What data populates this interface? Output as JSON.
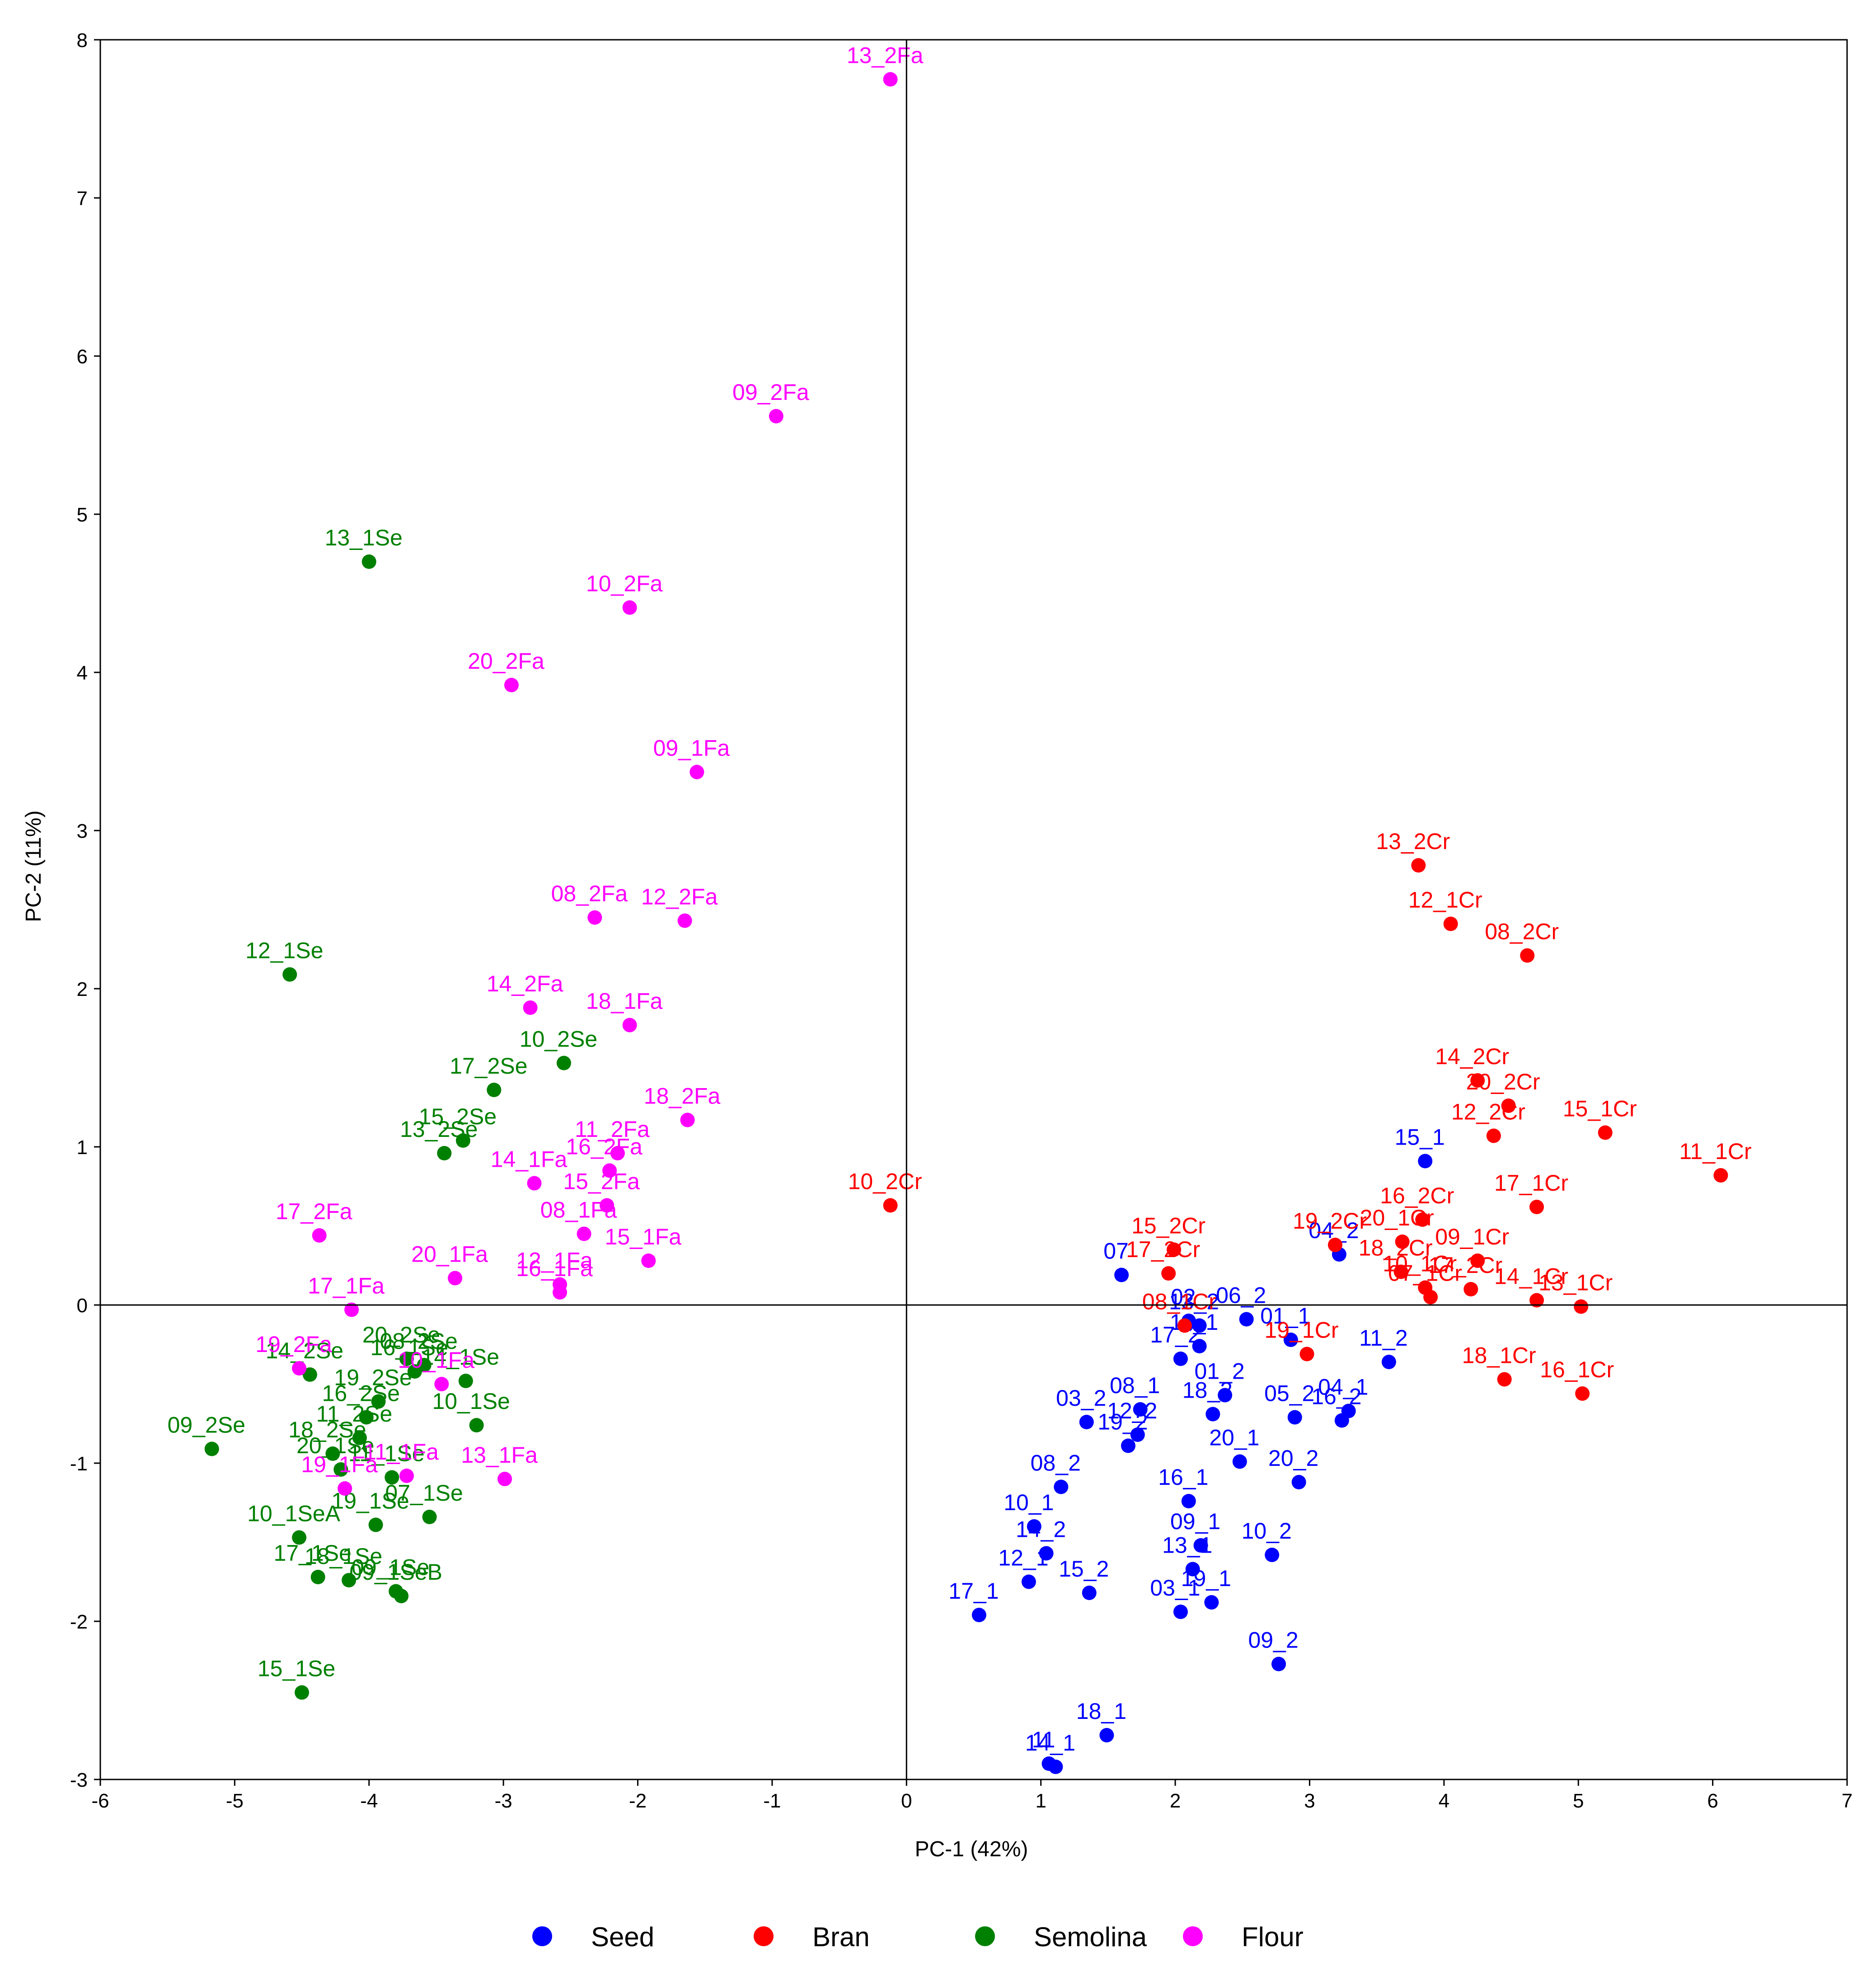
{
  "chart_data": {
    "type": "scatter",
    "title": "",
    "xlabel": "PC-1 (42%)",
    "ylabel": "PC-2 (11%)",
    "xlim": [
      -6,
      7
    ],
    "ylim": [
      -3,
      8
    ],
    "xticks": [
      -6,
      -5,
      -4,
      -3,
      -2,
      -1,
      0,
      1,
      2,
      3,
      4,
      5,
      6,
      7
    ],
    "yticks": [
      -3,
      -2,
      -1,
      0,
      1,
      2,
      3,
      4,
      5,
      6,
      7,
      8
    ],
    "grid": false,
    "zero_lines": true,
    "legend_position": "bottom",
    "series": [
      {
        "name": "Seed",
        "color": "#0000FF",
        "points": [
          {
            "label": "15_1",
            "x": 3.86,
            "y": 0.91
          },
          {
            "label": "04_2",
            "x": 3.22,
            "y": 0.32
          },
          {
            "label": "07",
            "x": 1.6,
            "y": 0.19
          },
          {
            "label": "06_2",
            "x": 2.53,
            "y": -0.09
          },
          {
            "label": "02",
            "x": 2.1,
            "y": -0.1
          },
          {
            "label": "13_2",
            "x": 2.18,
            "y": -0.13
          },
          {
            "label": "01_1",
            "x": 2.86,
            "y": -0.22
          },
          {
            "label": "11_2",
            "x": 3.59,
            "y": -0.36
          },
          {
            "label": "11_1",
            "x": 2.18,
            "y": -0.26
          },
          {
            "label": "17_2",
            "x": 2.04,
            "y": -0.34
          },
          {
            "label": "01_2",
            "x": 2.37,
            "y": -0.57
          },
          {
            "label": "04_1",
            "x": 3.29,
            "y": -0.67
          },
          {
            "label": "16_2",
            "x": 3.24,
            "y": -0.73
          },
          {
            "label": "05_2",
            "x": 2.89,
            "y": -0.71
          },
          {
            "label": "03_2",
            "x": 1.34,
            "y": -0.74
          },
          {
            "label": "08_1",
            "x": 1.74,
            "y": -0.66
          },
          {
            "label": "12_2",
            "x": 1.72,
            "y": -0.82
          },
          {
            "label": "18_2",
            "x": 2.28,
            "y": -0.69
          },
          {
            "label": "19_2",
            "x": 1.65,
            "y": -0.89
          },
          {
            "label": "20_2",
            "x": 2.92,
            "y": -1.12
          },
          {
            "label": "20_1",
            "x": 2.48,
            "y": -0.99
          },
          {
            "label": "08_2",
            "x": 1.15,
            "y": -1.15
          },
          {
            "label": "16_1",
            "x": 2.1,
            "y": -1.24
          },
          {
            "label": "10_1",
            "x": 0.95,
            "y": -1.4
          },
          {
            "label": "14_2",
            "x": 1.04,
            "y": -1.57
          },
          {
            "label": "09_1",
            "x": 2.19,
            "y": -1.52
          },
          {
            "label": "10_2",
            "x": 2.72,
            "y": -1.58
          },
          {
            "label": "13_1",
            "x": 2.13,
            "y": -1.67
          },
          {
            "label": "12_1",
            "x": 0.91,
            "y": -1.75
          },
          {
            "label": "15_2",
            "x": 1.36,
            "y": -1.82
          },
          {
            "label": "19_1",
            "x": 2.27,
            "y": -1.88
          },
          {
            "label": "17_1",
            "x": 0.54,
            "y": -1.96
          },
          {
            "label": "03_1",
            "x": 2.04,
            "y": -1.94
          },
          {
            "label": "09_2",
            "x": 2.77,
            "y": -2.27
          },
          {
            "label": "18_1",
            "x": 1.49,
            "y": -2.72
          },
          {
            "label": "14_1",
            "x": 1.11,
            "y": -2.92
          },
          {
            "label": "11",
            "x": 1.06,
            "y": -2.9
          }
        ]
      },
      {
        "name": "Bran",
        "color": "#FF0000",
        "points": [
          {
            "label": "13_2Cr",
            "x": 3.81,
            "y": 2.78
          },
          {
            "label": "12_1Cr",
            "x": 4.05,
            "y": 2.41
          },
          {
            "label": "08_2Cr",
            "x": 4.62,
            "y": 2.21
          },
          {
            "label": "14_2Cr",
            "x": 4.25,
            "y": 1.42
          },
          {
            "label": "20_2Cr",
            "x": 4.48,
            "y": 1.26
          },
          {
            "label": "12_2Cr",
            "x": 4.37,
            "y": 1.07
          },
          {
            "label": "15_1Cr",
            "x": 5.2,
            "y": 1.09
          },
          {
            "label": "11_1Cr",
            "x": 6.06,
            "y": 0.82
          },
          {
            "label": "17_1Cr",
            "x": 4.69,
            "y": 0.62
          },
          {
            "label": "16_2Cr",
            "x": 3.84,
            "y": 0.54
          },
          {
            "label": "19_2Cr",
            "x": 3.19,
            "y": 0.38
          },
          {
            "label": "20_1Cr",
            "x": 3.69,
            "y": 0.4
          },
          {
            "label": "09_1Cr",
            "x": 4.25,
            "y": 0.28
          },
          {
            "label": "18_2Cr",
            "x": 3.68,
            "y": 0.21
          },
          {
            "label": "10_1Cr",
            "x": 3.86,
            "y": 0.11
          },
          {
            "label": "07_1Cr",
            "x": 3.9,
            "y": 0.05
          },
          {
            "label": "17_2Cr",
            "x": 4.2,
            "y": 0.1
          },
          {
            "label": "14_1Cr",
            "x": 4.69,
            "y": 0.03
          },
          {
            "label": "13_1Cr",
            "x": 5.02,
            "y": -0.01
          },
          {
            "label": "15_2Cr",
            "x": 1.99,
            "y": 0.35
          },
          {
            "label": "17_2Cr",
            "x": 1.95,
            "y": 0.2
          },
          {
            "label": "08_1Cr",
            "x": 2.07,
            "y": -0.13
          },
          {
            "label": "19_1Cr",
            "x": 2.98,
            "y": -0.31
          },
          {
            "label": "18_1Cr",
            "x": 4.45,
            "y": -0.47
          },
          {
            "label": "16_1Cr",
            "x": 5.03,
            "y": -0.56
          },
          {
            "label": "10_2Cr",
            "x": -0.12,
            "y": 0.63
          }
        ]
      },
      {
        "name": "Semolina",
        "color": "#008000",
        "points": [
          {
            "label": "13_1Se",
            "x": -4.0,
            "y": 4.7
          },
          {
            "label": "12_1Se",
            "x": -4.59,
            "y": 2.09
          },
          {
            "label": "10_2Se",
            "x": -2.55,
            "y": 1.53
          },
          {
            "label": "17_2Se",
            "x": -3.07,
            "y": 1.36
          },
          {
            "label": "15_2Se",
            "x": -3.3,
            "y": 1.04
          },
          {
            "label": "13_2Se",
            "x": -3.44,
            "y": 0.96
          },
          {
            "label": "20_2Se",
            "x": -3.72,
            "y": -0.34
          },
          {
            "label": "14_2Se",
            "x": -4.44,
            "y": -0.44
          },
          {
            "label": "08_2Se",
            "x": -3.59,
            "y": -0.38
          },
          {
            "label": "16_1Se",
            "x": -3.66,
            "y": -0.42
          },
          {
            "label": "14_1Se",
            "x": -3.28,
            "y": -0.48
          },
          {
            "label": "19_2Se",
            "x": -3.93,
            "y": -0.61
          },
          {
            "label": "16_2Se",
            "x": -4.02,
            "y": -0.71
          },
          {
            "label": "11_2Se",
            "x": -4.07,
            "y": -0.84
          },
          {
            "label": "09_2Se",
            "x": -5.17,
            "y": -0.91
          },
          {
            "label": "10_1Se",
            "x": -3.2,
            "y": -0.76
          },
          {
            "label": "18_2Se",
            "x": -4.27,
            "y": -0.94
          },
          {
            "label": "20_1Se",
            "x": -4.21,
            "y": -1.04
          },
          {
            "label": "11_1Se",
            "x": -3.83,
            "y": -1.09
          },
          {
            "label": "07_1Se",
            "x": -3.55,
            "y": -1.34
          },
          {
            "label": "19_1Se",
            "x": -3.95,
            "y": -1.39
          },
          {
            "label": "10_1SeA",
            "x": -4.52,
            "y": -1.47
          },
          {
            "label": "17_1Se",
            "x": -4.38,
            "y": -1.72
          },
          {
            "label": "18_1Se",
            "x": -4.15,
            "y": -1.74
          },
          {
            "label": "09_1Se",
            "x": -3.8,
            "y": -1.81
          },
          {
            "label": "09_1SeB",
            "x": -3.76,
            "y": -1.84
          },
          {
            "label": "15_1Se",
            "x": -4.5,
            "y": -2.45
          }
        ]
      },
      {
        "name": "Flour",
        "color": "#FF00FF",
        "points": [
          {
            "label": "13_2Fa",
            "x": -0.12,
            "y": 7.75
          },
          {
            "label": "09_2Fa",
            "x": -0.97,
            "y": 5.62
          },
          {
            "label": "10_2Fa",
            "x": -2.06,
            "y": 4.41
          },
          {
            "label": "20_2Fa",
            "x": -2.94,
            "y": 3.92
          },
          {
            "label": "09_1Fa",
            "x": -1.56,
            "y": 3.37
          },
          {
            "label": "08_2Fa",
            "x": -2.32,
            "y": 2.45
          },
          {
            "label": "12_2Fa",
            "x": -1.65,
            "y": 2.43
          },
          {
            "label": "14_2Fa",
            "x": -2.8,
            "y": 1.88
          },
          {
            "label": "18_1Fa",
            "x": -2.06,
            "y": 1.77
          },
          {
            "label": "18_2Fa",
            "x": -1.63,
            "y": 1.17
          },
          {
            "label": "11_2Fa",
            "x": -2.15,
            "y": 0.96
          },
          {
            "label": "16_2Fa",
            "x": -2.21,
            "y": 0.85
          },
          {
            "label": "14_1Fa",
            "x": -2.77,
            "y": 0.77
          },
          {
            "label": "15_2Fa",
            "x": -2.23,
            "y": 0.63
          },
          {
            "label": "08_1Fa",
            "x": -2.4,
            "y": 0.45
          },
          {
            "label": "15_1Fa",
            "x": -1.92,
            "y": 0.28
          },
          {
            "label": "17_2Fa",
            "x": -4.37,
            "y": 0.44
          },
          {
            "label": "20_1Fa",
            "x": -3.36,
            "y": 0.17
          },
          {
            "label": "12_1Fa",
            "x": -2.58,
            "y": 0.13
          },
          {
            "label": "16_1Fa",
            "x": -2.58,
            "y": 0.08
          },
          {
            "label": "17_1Fa",
            "x": -4.13,
            "y": -0.03
          },
          {
            "label": "19_2Fa",
            "x": -4.52,
            "y": -0.4
          },
          {
            "label": "10_1Fa",
            "x": -3.46,
            "y": -0.5
          },
          {
            "label": "11_1Fa",
            "x": -3.72,
            "y": -1.08
          },
          {
            "label": "13_1Fa",
            "x": -2.99,
            "y": -1.1
          },
          {
            "label": "19_1Fa",
            "x": -4.18,
            "y": -1.16
          }
        ]
      }
    ]
  }
}
